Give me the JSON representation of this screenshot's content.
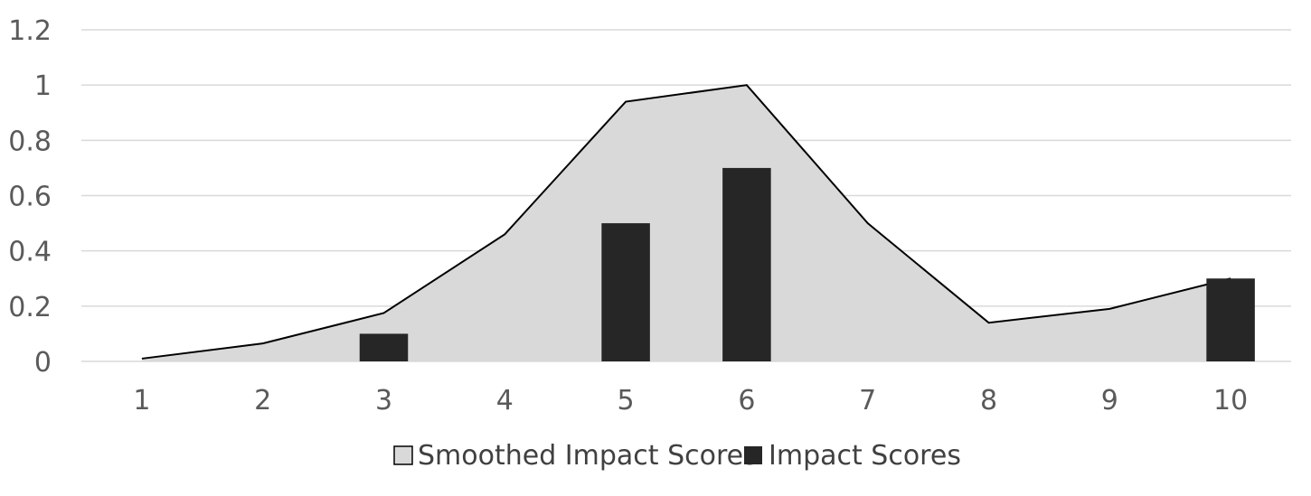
{
  "chart_data": {
    "type": "bar",
    "title": "",
    "xlabel": "",
    "ylabel": "",
    "categories": [
      "1",
      "2",
      "3",
      "4",
      "5",
      "6",
      "7",
      "8",
      "9",
      "10"
    ],
    "ylim": [
      0,
      1.2
    ],
    "yticks": [
      "0",
      "0.2",
      "0.4",
      "0.6",
      "0.8",
      "1",
      "1.2"
    ],
    "grid": true,
    "legend_position": "bottom",
    "series": [
      {
        "name": "Smoothed Impact Scores",
        "type": "area",
        "values": [
          0.01,
          0.065,
          0.175,
          0.46,
          0.94,
          1.0,
          0.5,
          0.14,
          0.19,
          0.3
        ],
        "fill_color": "#d9d9d9",
        "line_color": "#000000"
      },
      {
        "name": "Impact Scores",
        "type": "bar",
        "values": [
          0,
          0,
          0.1,
          0,
          0.5,
          0.7,
          0,
          0,
          0,
          0.3
        ],
        "color": "#262626"
      }
    ],
    "gridline_color": "#d9d9d9"
  }
}
